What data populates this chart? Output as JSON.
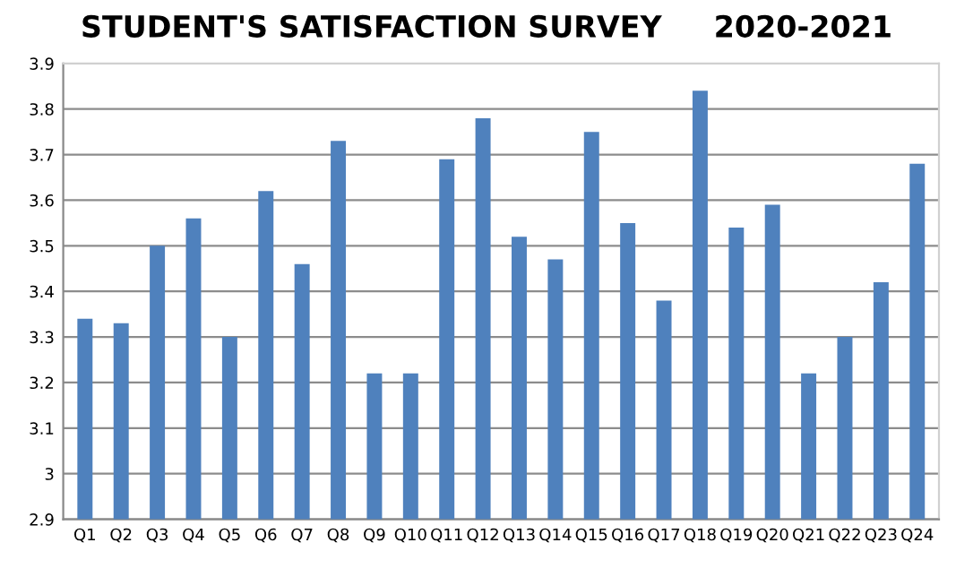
{
  "chart_data": {
    "type": "bar",
    "title": "STUDENT'S SATISFACTION SURVEY     2020-2021",
    "categories": [
      "Q1",
      "Q2",
      "Q3",
      "Q4",
      "Q5",
      "Q6",
      "Q7",
      "Q8",
      "Q9",
      "Q10",
      "Q11",
      "Q12",
      "Q13",
      "Q14",
      "Q15",
      "Q16",
      "Q17",
      "Q18",
      "Q19",
      "Q20",
      "Q21",
      "Q22",
      "Q23",
      "Q24"
    ],
    "values": [
      3.34,
      3.33,
      3.5,
      3.56,
      3.3,
      3.62,
      3.46,
      3.73,
      3.22,
      3.22,
      3.69,
      3.78,
      3.52,
      3.47,
      3.75,
      3.55,
      3.38,
      3.84,
      3.54,
      3.59,
      3.22,
      3.3,
      3.42,
      3.68
    ],
    "color": "#4f81bd",
    "ylim": [
      2.9,
      3.9
    ],
    "yticks": [
      2.9,
      3,
      3.1,
      3.2,
      3.3,
      3.4,
      3.5,
      3.6,
      3.7,
      3.8,
      3.9
    ],
    "grid": "y"
  }
}
